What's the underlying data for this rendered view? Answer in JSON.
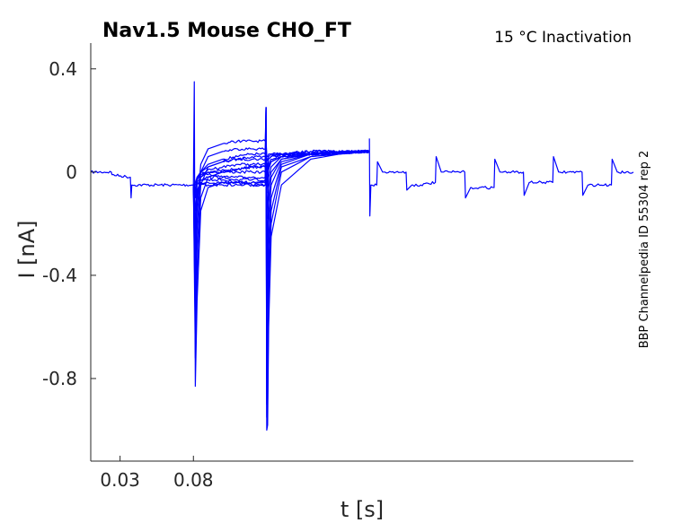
{
  "chart_data": {
    "type": "line",
    "title": "Nav1.5  Mouse  CHO_FT",
    "subtitle": "15 °C  Inactivation",
    "side_label": "BBP Channelpedia ID 55304 rep 2",
    "xlabel": "t [s]",
    "ylabel": "I [nA]",
    "xlim": [
      0.01,
      0.38
    ],
    "ylim": [
      -1.12,
      0.5
    ],
    "x_ticks": [
      0.03,
      0.08
    ],
    "x_tick_labels": [
      "0.03",
      "0.08"
    ],
    "y_ticks": [
      0.4,
      0,
      -0.4,
      -0.8
    ],
    "y_tick_labels": [
      "0.4",
      "0",
      "-0.4",
      "-0.8"
    ],
    "grid": false,
    "legend": "none",
    "series_color": "#0000ff",
    "sweep_count": 15,
    "series": [
      {
        "x": [
          0.01,
          0.024,
          0.0245,
          0.037,
          0.0375,
          0.038,
          0.08,
          0.0806,
          0.0813,
          0.0825,
          0.085,
          0.09,
          0.1,
          0.11,
          0.12,
          0.129,
          0.1295,
          0.13,
          0.1306,
          0.1313,
          0.133,
          0.14,
          0.16,
          0.19,
          0.2
        ],
        "y": [
          0,
          0,
          -0.01,
          -0.02,
          -0.1,
          -0.05,
          -0.05,
          0.35,
          -0.83,
          -0.5,
          -0.15,
          -0.06,
          -0.04,
          -0.04,
          -0.05,
          -0.05,
          0.25,
          -1.0,
          -0.98,
          -0.6,
          -0.25,
          -0.05,
          0.05,
          0.08,
          0.08
        ]
      },
      {
        "x": [
          0.08,
          0.0813,
          0.0825,
          0.085,
          0.09,
          0.1,
          0.11,
          0.12,
          0.129,
          0.1295,
          0.13,
          0.1306,
          0.1313,
          0.133,
          0.14,
          0.16,
          0.2
        ],
        "y": [
          -0.05,
          -0.72,
          -0.4,
          -0.1,
          -0.02,
          0.0,
          0.01,
          0.02,
          0.02,
          0.25,
          -0.95,
          -0.9,
          -0.5,
          -0.2,
          0.0,
          0.06,
          0.08
        ]
      },
      {
        "x": [
          0.08,
          0.0813,
          0.0825,
          0.085,
          0.09,
          0.1,
          0.11,
          0.12,
          0.129,
          0.1295,
          0.13,
          0.1306,
          0.1313,
          0.133,
          0.14,
          0.16,
          0.2
        ],
        "y": [
          -0.05,
          -0.6,
          -0.3,
          -0.05,
          0.02,
          0.04,
          0.05,
          0.05,
          0.05,
          0.25,
          -0.9,
          -0.8,
          -0.4,
          -0.15,
          0.02,
          0.06,
          0.08
        ]
      },
      {
        "x": [
          0.08,
          0.0813,
          0.0825,
          0.085,
          0.09,
          0.1,
          0.11,
          0.12,
          0.129,
          0.1295,
          0.13,
          0.1306,
          0.1313,
          0.133,
          0.14,
          0.16,
          0.2
        ],
        "y": [
          -0.05,
          -0.5,
          -0.22,
          0.0,
          0.06,
          0.08,
          0.09,
          0.09,
          0.09,
          0.25,
          -0.8,
          -0.65,
          -0.3,
          -0.1,
          0.03,
          0.07,
          0.08
        ]
      },
      {
        "x": [
          0.08,
          0.0813,
          0.0825,
          0.085,
          0.09,
          0.1,
          0.11,
          0.12,
          0.129,
          0.1295,
          0.13,
          0.1306,
          0.1313,
          0.133,
          0.14,
          0.16,
          0.2
        ],
        "y": [
          -0.05,
          -0.4,
          -0.15,
          0.03,
          0.09,
          0.11,
          0.12,
          0.12,
          0.12,
          0.25,
          -0.6,
          -0.45,
          -0.2,
          -0.05,
          0.04,
          0.07,
          0.08
        ]
      },
      {
        "x": [
          0.08,
          0.0813,
          0.0825,
          0.085,
          0.09,
          0.1,
          0.11,
          0.12,
          0.129,
          0.1295,
          0.13,
          0.1306,
          0.1313,
          0.133,
          0.14,
          0.16,
          0.2
        ],
        "y": [
          -0.05,
          -0.32,
          -0.1,
          -0.02,
          0.0,
          0.0,
          0.0,
          0.0,
          0.0,
          0.2,
          -0.45,
          -0.3,
          -0.12,
          -0.02,
          0.05,
          0.07,
          0.08
        ]
      },
      {
        "x": [
          0.08,
          0.0813,
          0.0825,
          0.085,
          0.09,
          0.1,
          0.11,
          0.12,
          0.129,
          0.1295,
          0.13,
          0.1306,
          0.1313,
          0.133,
          0.14,
          0.16,
          0.2
        ],
        "y": [
          -0.05,
          -0.25,
          -0.08,
          -0.03,
          -0.02,
          -0.02,
          -0.02,
          -0.02,
          -0.02,
          0.18,
          -0.3,
          -0.2,
          -0.06,
          0.0,
          0.05,
          0.07,
          0.08
        ]
      },
      {
        "x": [
          0.08,
          0.0813,
          0.0825,
          0.085,
          0.09,
          0.1,
          0.11,
          0.12,
          0.129,
          0.1295,
          0.13,
          0.1306,
          0.1313,
          0.133,
          0.14,
          0.16,
          0.2
        ],
        "y": [
          -0.05,
          -0.2,
          -0.07,
          -0.04,
          -0.04,
          -0.04,
          -0.04,
          -0.04,
          -0.04,
          0.15,
          -0.18,
          -0.1,
          -0.02,
          0.02,
          0.06,
          0.07,
          0.08
        ]
      },
      {
        "x": [
          0.08,
          0.0813,
          0.0825,
          0.085,
          0.09,
          0.1,
          0.11,
          0.12,
          0.129,
          0.1295,
          0.13,
          0.1306,
          0.1313,
          0.133,
          0.14,
          0.16,
          0.2
        ],
        "y": [
          -0.05,
          -0.15,
          -0.05,
          -0.03,
          -0.03,
          -0.03,
          -0.04,
          -0.04,
          -0.04,
          0.12,
          -0.08,
          -0.03,
          0.02,
          0.04,
          0.06,
          0.07,
          0.08
        ]
      },
      {
        "x": [
          0.08,
          0.0813,
          0.0825,
          0.085,
          0.09,
          0.1,
          0.11,
          0.12,
          0.129,
          0.1295,
          0.13,
          0.1306,
          0.1313,
          0.133,
          0.14,
          0.16,
          0.2
        ],
        "y": [
          -0.05,
          -0.1,
          -0.04,
          -0.02,
          0.01,
          0.02,
          0.03,
          0.03,
          0.03,
          0.15,
          0.0,
          0.02,
          0.05,
          0.06,
          0.07,
          0.07,
          0.08
        ]
      },
      {
        "x": [
          0.08,
          0.0813,
          0.0825,
          0.085,
          0.09,
          0.1,
          0.11,
          0.12,
          0.129,
          0.1295,
          0.13,
          0.1306,
          0.1313,
          0.133,
          0.14,
          0.16,
          0.2
        ],
        "y": [
          -0.05,
          -0.08,
          -0.03,
          0.0,
          0.03,
          0.05,
          0.06,
          0.07,
          0.07,
          0.15,
          0.04,
          0.05,
          0.06,
          0.07,
          0.07,
          0.08,
          0.08
        ]
      },
      {
        "x": [
          0.08,
          0.0813,
          0.0825,
          0.085,
          0.09,
          0.1,
          0.11,
          0.12,
          0.129,
          0.1295,
          0.13,
          0.1306,
          0.1313,
          0.133,
          0.14,
          0.16,
          0.2
        ],
        "y": [
          -0.05,
          -0.07,
          -0.02,
          0.0,
          -0.01,
          -0.02,
          -0.03,
          -0.03,
          -0.03,
          0.1,
          -0.02,
          0.0,
          0.03,
          0.05,
          0.06,
          0.07,
          0.08
        ]
      },
      {
        "x": [
          0.08,
          0.0813,
          0.0825,
          0.085,
          0.09,
          0.1,
          0.11,
          0.12,
          0.129,
          0.1295,
          0.13,
          0.1306,
          0.1313,
          0.133,
          0.14,
          0.16,
          0.2
        ],
        "y": [
          -0.05,
          -0.06,
          -0.04,
          -0.05,
          -0.05,
          -0.05,
          -0.05,
          -0.05,
          -0.05,
          0.08,
          -0.05,
          -0.03,
          0.01,
          0.04,
          0.06,
          0.07,
          0.08
        ]
      },
      {
        "x": [
          0.08,
          0.0813,
          0.0825,
          0.085,
          0.09,
          0.1,
          0.11,
          0.12,
          0.129,
          0.1295,
          0.13,
          0.1306,
          0.1313,
          0.133,
          0.14,
          0.16,
          0.2
        ],
        "y": [
          -0.05,
          -0.05,
          -0.03,
          -0.01,
          0.0,
          0.01,
          0.01,
          0.02,
          0.02,
          0.1,
          0.02,
          0.03,
          0.05,
          0.06,
          0.07,
          0.07,
          0.08
        ]
      },
      {
        "x": [
          0.08,
          0.0813,
          0.0825,
          0.085,
          0.09,
          0.1,
          0.11,
          0.12,
          0.129,
          0.1295,
          0.13,
          0.1306,
          0.1313,
          0.133,
          0.14,
          0.16,
          0.2
        ],
        "y": [
          -0.05,
          -0.04,
          -0.02,
          0.0,
          0.02,
          0.04,
          0.05,
          0.06,
          0.06,
          0.12,
          0.06,
          0.06,
          0.07,
          0.07,
          0.07,
          0.08,
          0.08
        ]
      },
      {
        "x": [
          0.2,
          0.2003,
          0.201,
          0.205,
          0.2055,
          0.209,
          0.2095,
          0.215,
          0.225,
          0.2255,
          0.229,
          0.2295,
          0.235,
          0.245,
          0.2455,
          0.249,
          0.2495,
          0.255,
          0.265,
          0.2655,
          0.269,
          0.2695,
          0.275,
          0.285,
          0.2855,
          0.289,
          0.2895,
          0.295,
          0.305,
          0.3055,
          0.309,
          0.3095,
          0.315,
          0.325,
          0.3255,
          0.329,
          0.3295,
          0.335,
          0.345,
          0.3455,
          0.349,
          0.3495,
          0.355,
          0.365,
          0.3655,
          0.369,
          0.3695,
          0.38
        ],
        "y": [
          0.13,
          -0.17,
          -0.05,
          -0.05,
          0.04,
          0.0,
          0.0,
          0.0,
          0.0,
          -0.07,
          -0.05,
          -0.05,
          -0.05,
          -0.04,
          0.06,
          0.0,
          0.0,
          0.0,
          0.0,
          -0.1,
          -0.06,
          -0.06,
          -0.06,
          -0.06,
          0.05,
          0.0,
          0.0,
          0.0,
          0.0,
          -0.09,
          -0.04,
          -0.04,
          -0.04,
          -0.04,
          0.06,
          0.0,
          0.0,
          0.0,
          0.0,
          -0.09,
          -0.05,
          -0.05,
          -0.05,
          -0.05,
          0.05,
          0.0,
          0.0,
          0.0
        ]
      }
    ]
  }
}
